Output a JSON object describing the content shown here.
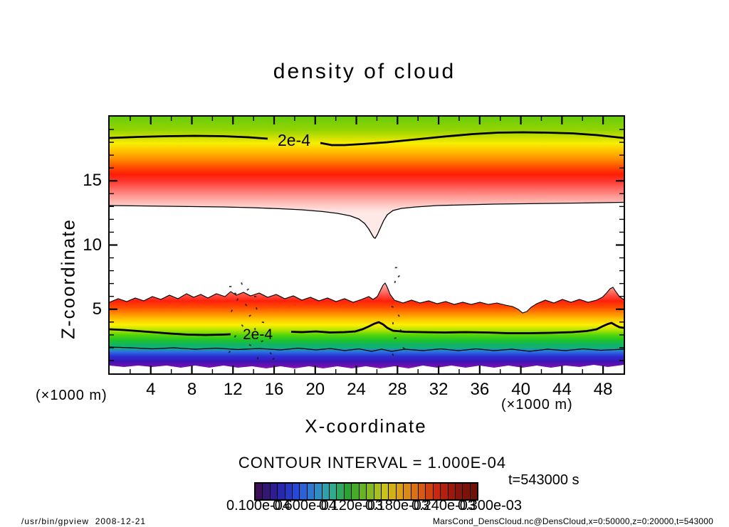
{
  "title": "density of cloud",
  "axes": {
    "x_label": "X-coordinate",
    "z_label": "Z-coordinate",
    "x_unit_left": "(×1000 m)",
    "x_unit_right": "(×1000 m)"
  },
  "contours": {
    "upper_label": "2e-4",
    "lower_label": "2e-4",
    "interval_note": "CONTOUR INTERVAL = 1.000E-04"
  },
  "time_label": "t=543000 s",
  "colorbar": {
    "tick_labels": [
      "0.100e-04",
      "0.600e-04",
      "0.120e-03",
      "0.180e-03",
      "0.240e-03",
      "0.300e-03"
    ],
    "palette": [
      "#3b1058",
      "#2b1f9e",
      "#2446da",
      "#2e7ed2",
      "#2fae9c",
      "#2aa32e",
      "#73b820",
      "#c9c31a",
      "#dc9a16",
      "#d95f12",
      "#c8240f",
      "#8f150c",
      "#6f120a"
    ]
  },
  "footer": {
    "left": "/usr/bin/gpview  2008-12-21",
    "right": "MarsCond_DensCloud.nc@DensCloud,x=0:50000,z=0:20000,t=543000"
  },
  "chart_data": {
    "type": "heatmap",
    "title": "density of cloud",
    "xlabel": "X-coordinate (×1000 m)",
    "ylabel": "Z-coordinate (×1000 m)",
    "xlim": [
      0,
      50
    ],
    "zlim": [
      0,
      20
    ],
    "x_major_ticks": [
      4,
      8,
      12,
      16,
      20,
      24,
      28,
      32,
      36,
      40,
      44,
      48
    ],
    "x_minor_step": 2,
    "z_major_ticks": [
      5,
      10,
      15
    ],
    "z_minor_step": 1,
    "contour_interval": "1.000E-04",
    "labeled_contour_value": "2e-4",
    "time": "t=543000 s",
    "colorbar_tick_labels": [
      "0.100e-04",
      "0.600e-04",
      "0.120e-03",
      "0.180e-03",
      "0.240e-03",
      "0.300e-03"
    ],
    "features": [
      "upper cloud deck between z≈13 and z≈20 (×1000 m); density rises downward past 2e-4 near z≈18.5 to a maximum above 3e-4 near z≈14-16, fading to zero near z≈13",
      "bottom edge of upper deck has a narrow downward plume reaching z≈10.5 at x≈26",
      "lower cloud layer from the surface up to z≈5-6 with the 2e-4 contour near z≈3.3 and density decreasing toward the surface (green/blue/purple shades)",
      "sharp spike in the lower layer top edge to z≈7 at x≈26.5 and a smaller spike near x≈49",
      "notch in the lower layer top edge near x≈40",
      "scattered weak dotted contours near x≈12-16 and x≈27-28 between z≈1 and z≈7"
    ]
  }
}
